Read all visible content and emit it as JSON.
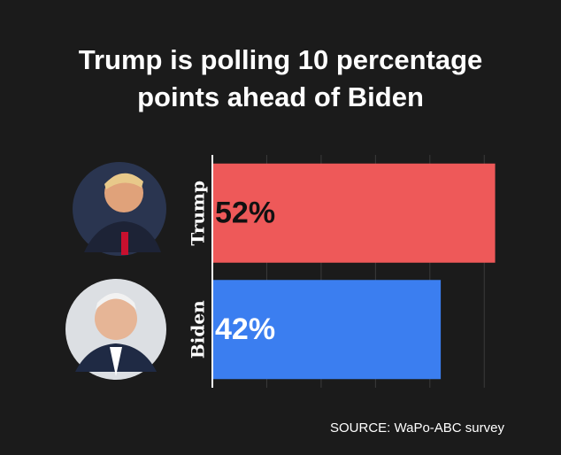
{
  "chart_data": {
    "type": "hbar",
    "title": [
      "Trump is polling 10 percentage",
      "points ahead of Biden"
    ],
    "categories": [
      "Trump",
      "Biden"
    ],
    "values": [
      52,
      42
    ],
    "value_labels": [
      "52%",
      "42%"
    ],
    "colors": [
      "#ee5959",
      "#3b7ef0"
    ],
    "label_colors": [
      "#111111",
      "#ffffff"
    ],
    "xlim": [
      0,
      55
    ],
    "xticks": [
      0,
      10,
      20,
      30,
      40,
      50
    ],
    "grid": true,
    "source": "SOURCE: WaPo-ABC survey"
  }
}
